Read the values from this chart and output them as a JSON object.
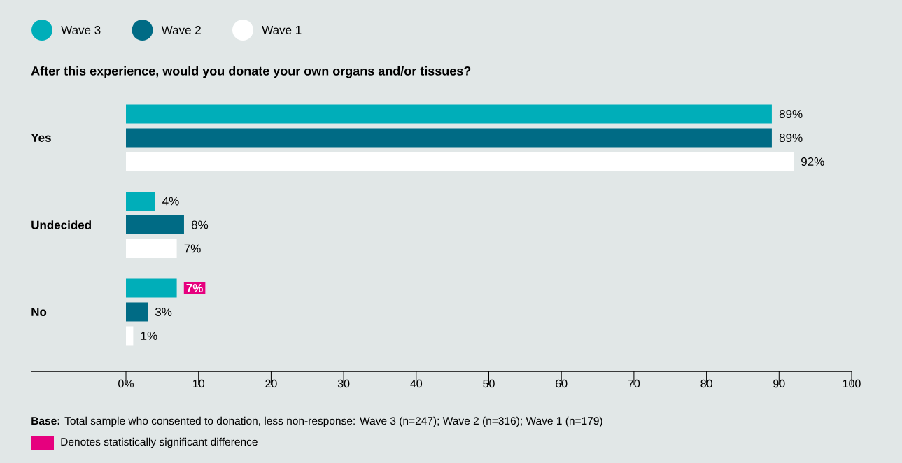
{
  "chart_data": {
    "type": "bar",
    "orientation": "horizontal",
    "title": "After this experience, would you donate your own organs and/or tissues?",
    "categories": [
      "Yes",
      "Undecided",
      "No"
    ],
    "series": [
      {
        "name": "Wave 3",
        "color": "#00aeb9",
        "values": [
          89,
          4,
          7
        ],
        "value_labels": [
          "89%",
          "4%",
          null
        ]
      },
      {
        "name": "Wave 2",
        "color": "#006b85",
        "values": [
          89,
          8,
          3
        ],
        "value_labels": [
          "89%",
          "8%",
          "3%"
        ]
      },
      {
        "name": "Wave 1",
        "color": "#ffffff",
        "values": [
          92,
          7,
          1
        ],
        "value_labels": [
          "92%",
          "7%",
          "1%"
        ]
      }
    ],
    "xlim": [
      0,
      100
    ],
    "xticks": [
      {
        "value": 0,
        "label": "0%"
      },
      10,
      20,
      30,
      40,
      50,
      60,
      70,
      80,
      90,
      100
    ],
    "legend": "top left",
    "annotations": [
      "**Base:** Total sample who consented to donation, less non-response: Wave 3 (n=247); Wave 2 (n=316); Wave 1 (n=179)",
      "7%",
      "Denotes statistically significant difference"
    ]
  }
}
